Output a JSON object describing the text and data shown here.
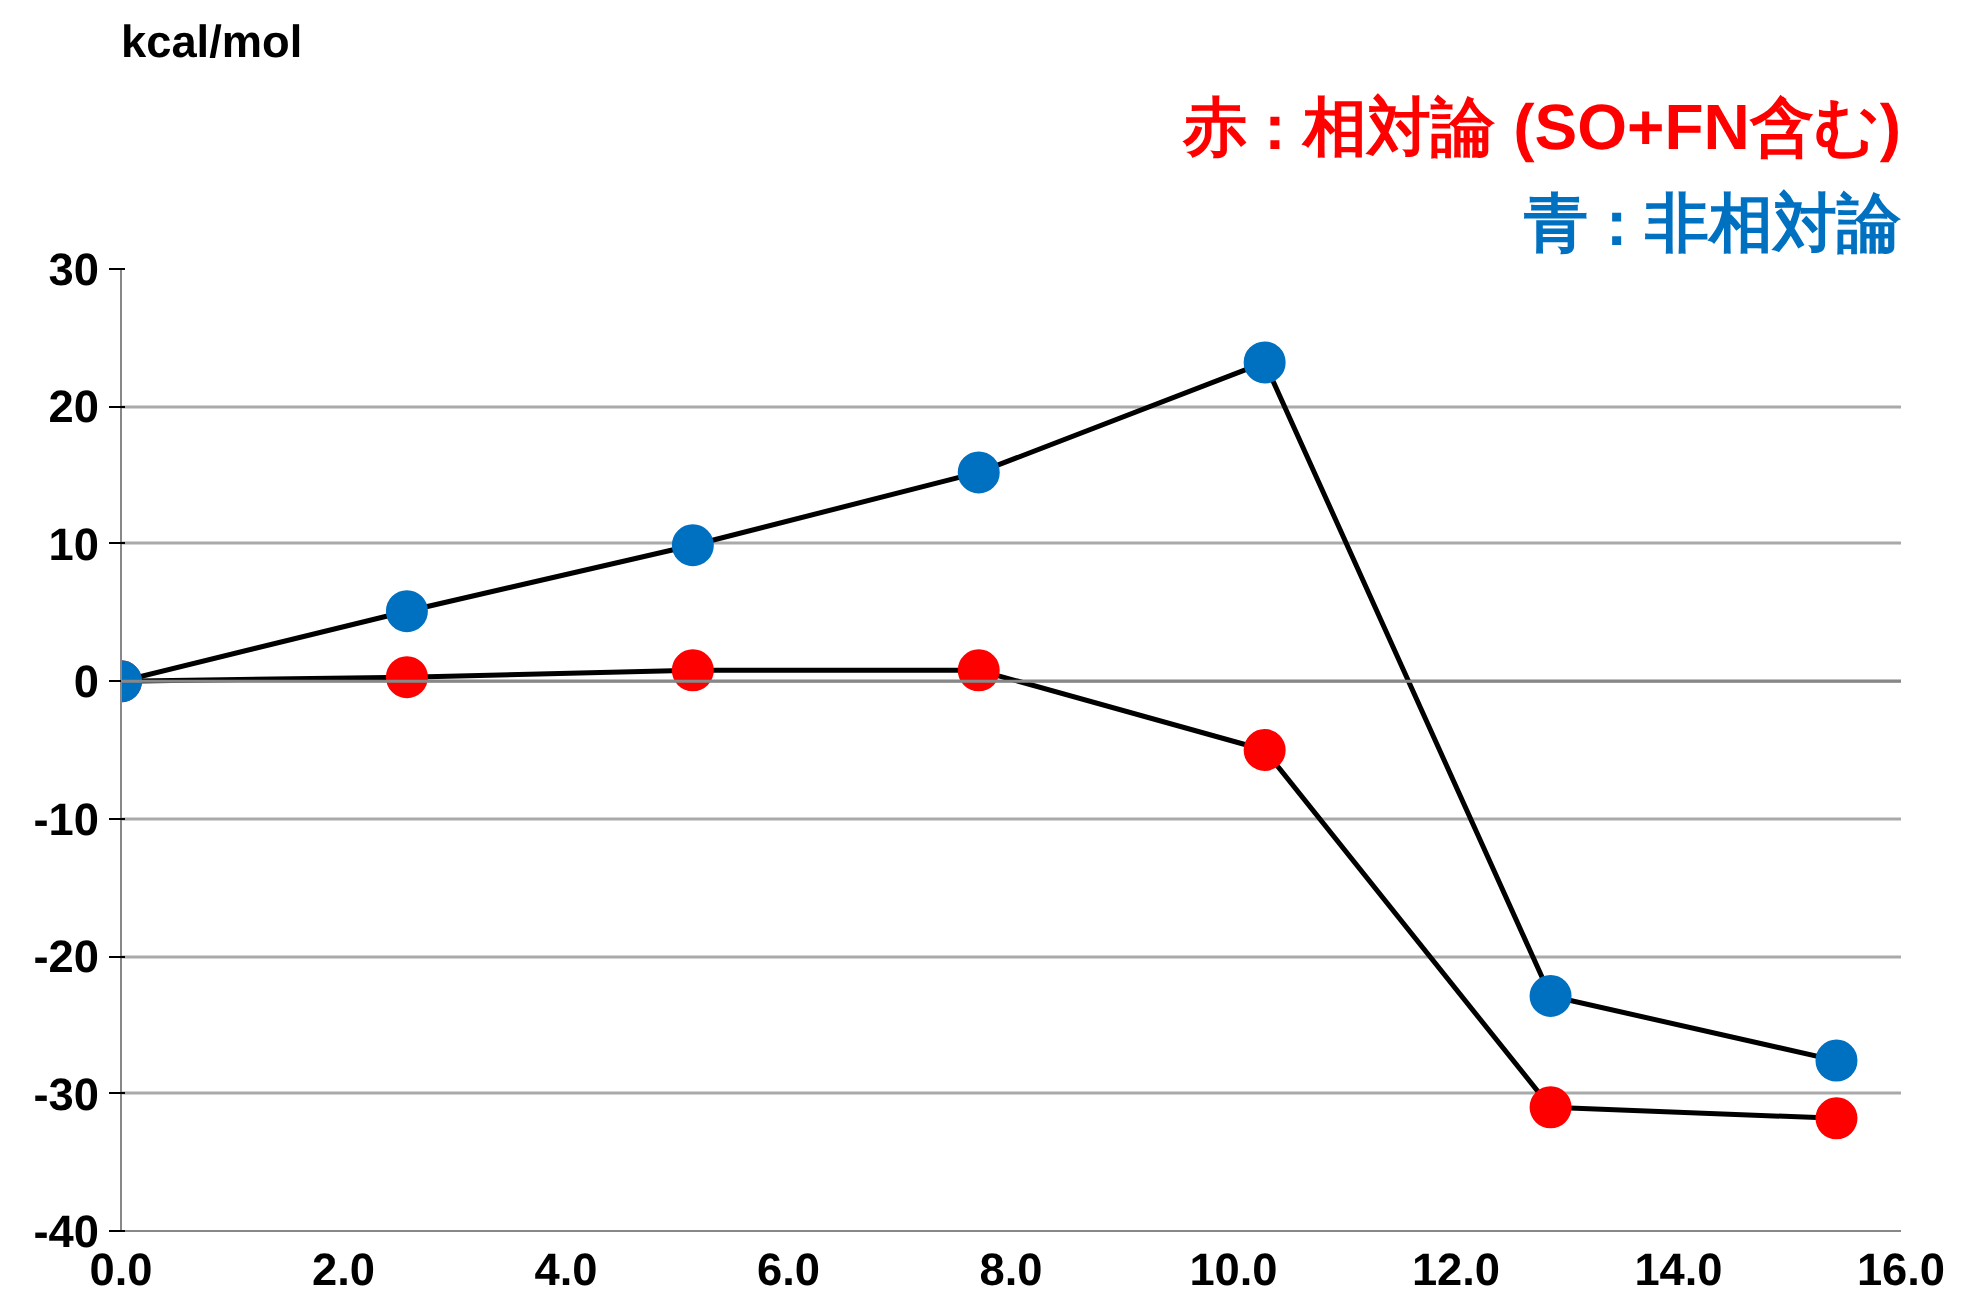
{
  "chart_data": {
    "type": "line",
    "ylabel": "kcal/mol",
    "x": [
      0,
      2.57,
      5.14,
      7.71,
      10.28,
      12.85,
      15.42
    ],
    "series": [
      {
        "name": "赤 : 相対論 (SO+FN含む)",
        "color": "#ff0000",
        "values": [
          0,
          0.3,
          0.8,
          0.8,
          -5.0,
          -31.0,
          -31.8
        ]
      },
      {
        "name": "青 : 非相対論",
        "color": "#0070c0",
        "values": [
          0,
          5.1,
          9.9,
          15.2,
          23.2,
          -22.9,
          -27.6
        ]
      }
    ],
    "xlim": [
      0,
      16
    ],
    "xticks": [
      {
        "value": 0,
        "label": "0.0"
      },
      {
        "value": 2,
        "label": "2.0"
      },
      {
        "value": 4,
        "label": "4.0"
      },
      {
        "value": 6,
        "label": "6.0"
      },
      {
        "value": 8,
        "label": "8.0"
      },
      {
        "value": 10,
        "label": "10.0"
      },
      {
        "value": 12,
        "label": "12.0"
      },
      {
        "value": 14,
        "label": "14.0"
      },
      {
        "value": 16,
        "label": "16.0"
      }
    ],
    "ylim": [
      -40,
      30
    ],
    "yticks": [
      -40,
      -30,
      -20,
      -10,
      0,
      10,
      20,
      30
    ],
    "grid": "y",
    "legend": "top right",
    "marker": "circle",
    "line_style": "solid"
  }
}
